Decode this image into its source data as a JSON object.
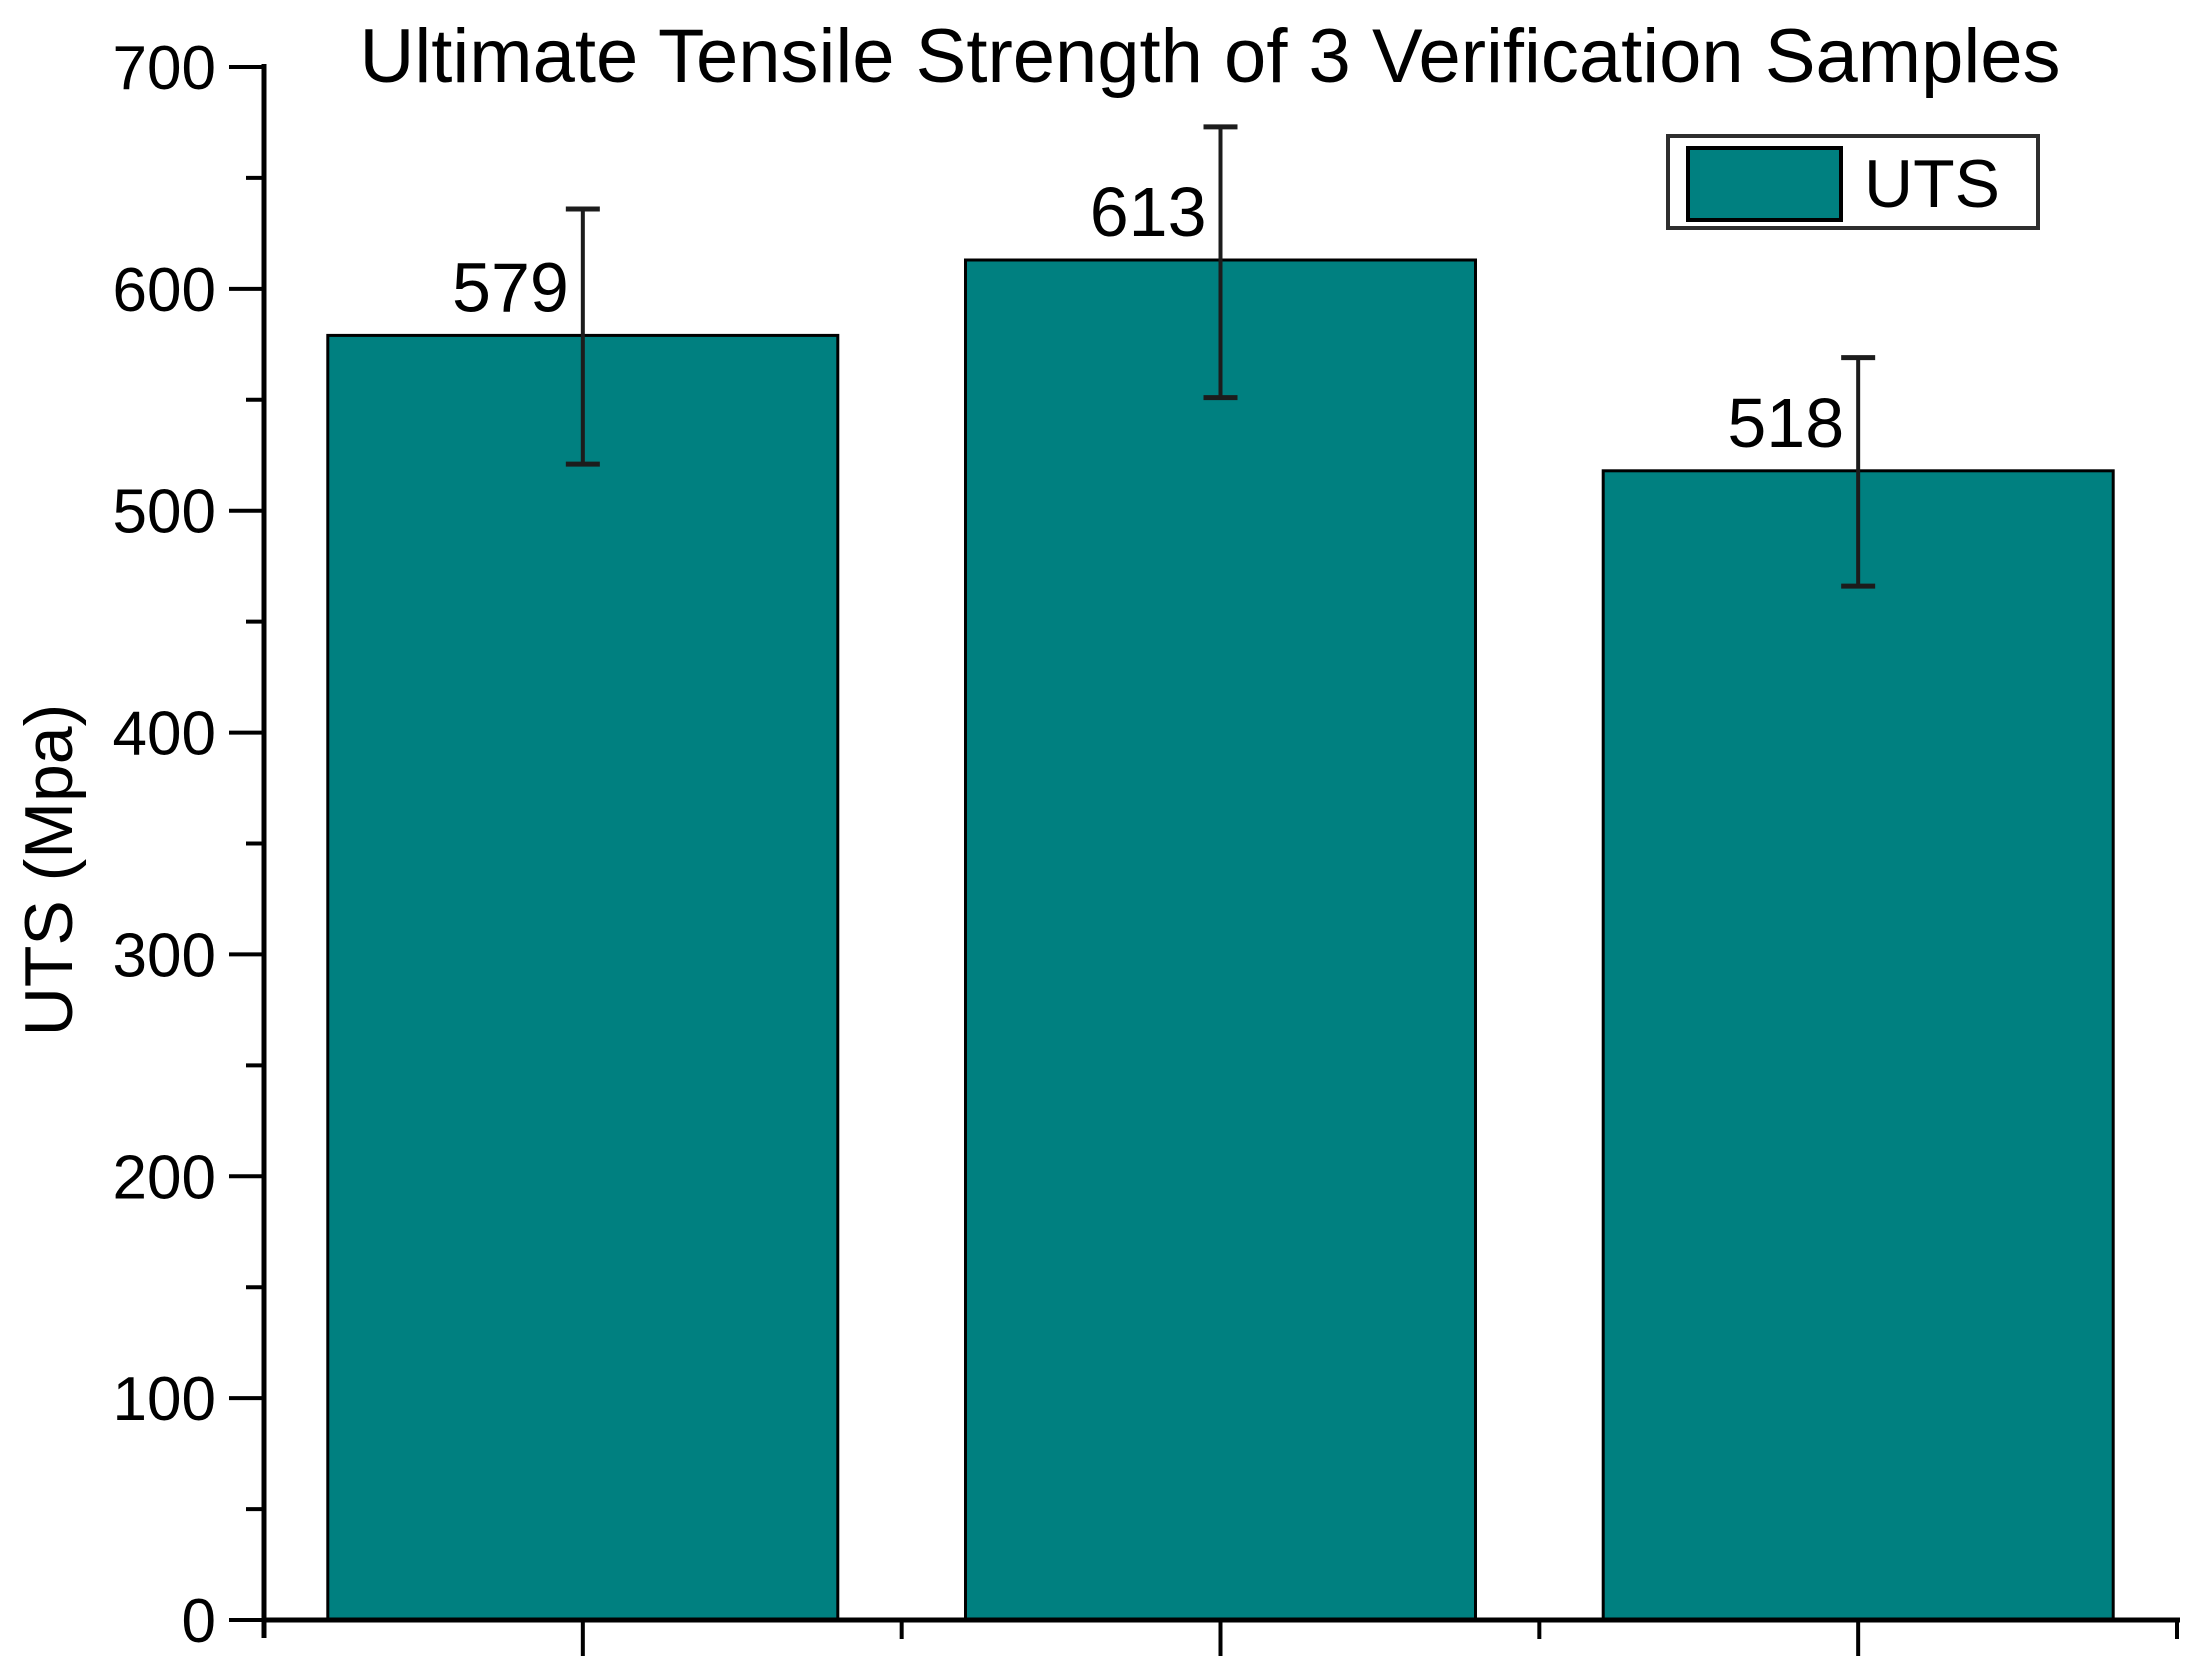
{
  "chart_data": {
    "type": "bar",
    "title": "Ultimate Tensile Strength of 3 Verification Samples",
    "xlabel": "",
    "ylabel": "UTS (Mpa)",
    "categories": [
      "",
      "",
      ""
    ],
    "series": [
      {
        "name": "UTS",
        "values": [
          579,
          613,
          518
        ],
        "error_upper": [
          636,
          673,
          569
        ],
        "error_lower": [
          521,
          551,
          466
        ]
      }
    ],
    "value_labels": [
      "579",
      "613",
      "518"
    ],
    "ylim": [
      0,
      700
    ],
    "yticks": [
      0,
      100,
      200,
      300,
      400,
      500,
      600,
      700
    ],
    "ytick_minor_interval": 50,
    "xtick_minor_at_category_boundaries": true,
    "grid": false,
    "bar_width_fraction": 0.8,
    "legend": {
      "position": "top-right",
      "entries": [
        "UTS"
      ]
    },
    "colors": {
      "bar_fill": "#008080",
      "bar_edge": "#000000",
      "axis": "#000000",
      "error_bar": "#1c1c1c",
      "text": "#000000",
      "legend_border": "#2e2e2e",
      "legend_fill": "#ffffff",
      "background": "#ffffff"
    }
  }
}
